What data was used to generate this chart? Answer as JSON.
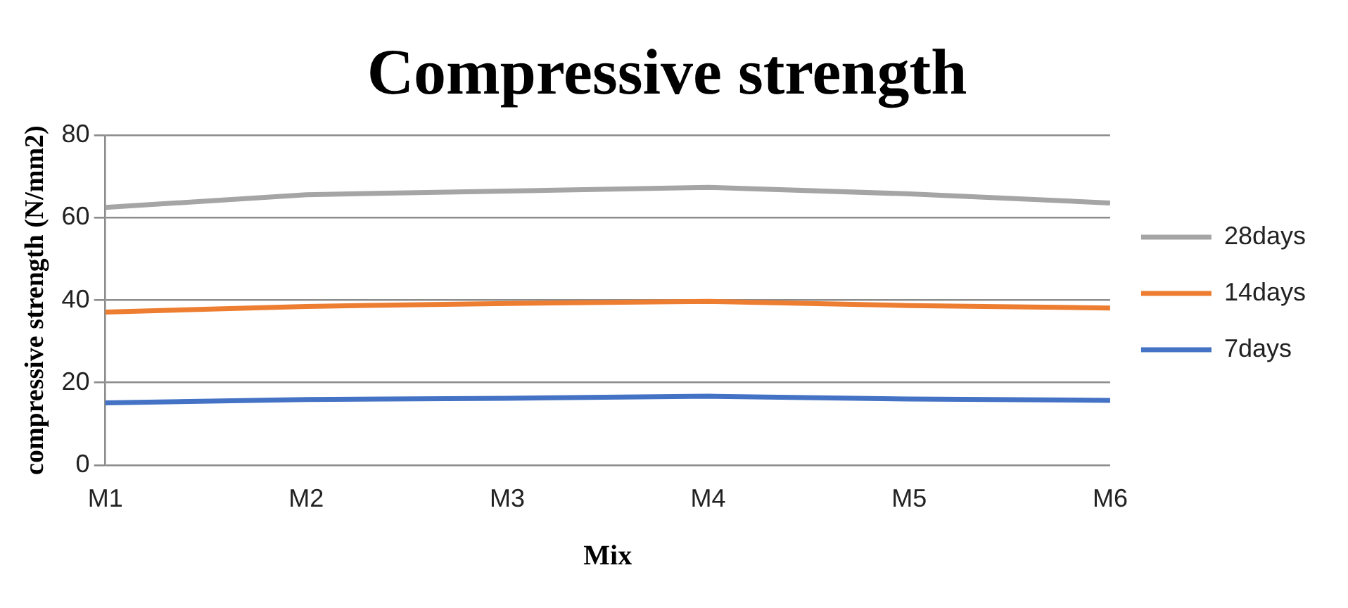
{
  "chart_data": {
    "type": "line",
    "title": "Compressive strength",
    "xlabel": "Mix",
    "ylabel": "compressive strength (N/mm2)",
    "categories": [
      "M1",
      "M2",
      "M3",
      "M4",
      "M5",
      "M6"
    ],
    "series": [
      {
        "name": "28days",
        "color": "#a5a5a5",
        "values": [
          62.5,
          65.6,
          66.5,
          67.4,
          65.8,
          63.6
        ]
      },
      {
        "name": "14days",
        "color": "#ed7d31",
        "values": [
          37.1,
          38.5,
          39.2,
          39.7,
          38.7,
          38.1
        ]
      },
      {
        "name": "7days",
        "color": "#4472c4",
        "values": [
          15.1,
          15.9,
          16.2,
          16.7,
          16.0,
          15.7
        ]
      }
    ],
    "ylim": [
      0,
      80
    ],
    "yticks": [
      0,
      20,
      40,
      60,
      80
    ],
    "grid": "y",
    "legend": "right",
    "marker": "none",
    "line_style": "solid"
  }
}
